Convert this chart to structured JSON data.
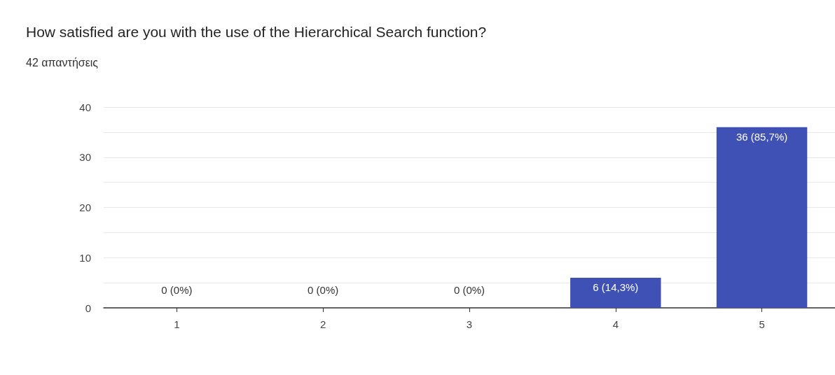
{
  "chart_data": {
    "type": "bar",
    "title": "How satisfied are you with the use of the Hierarchical Search function?",
    "subtitle": "42 απαντήσεις",
    "categories": [
      "1",
      "2",
      "3",
      "4",
      "5"
    ],
    "values": [
      0,
      0,
      0,
      6,
      36
    ],
    "value_labels": [
      "0 (0%)",
      "0 (0%)",
      "0 (0%)",
      "6 (14,3%)",
      "36 (85,7%)"
    ],
    "color": "#3f51b5",
    "ylim": [
      0,
      40
    ],
    "yticks": [
      0,
      {
        "value": 5,
        "label": null
      },
      10,
      {
        "value": 15,
        "label": null
      },
      20,
      {
        "value": 25,
        "label": null
      },
      30,
      {
        "value": 35,
        "label": null
      },
      40
    ],
    "grid": "y"
  }
}
